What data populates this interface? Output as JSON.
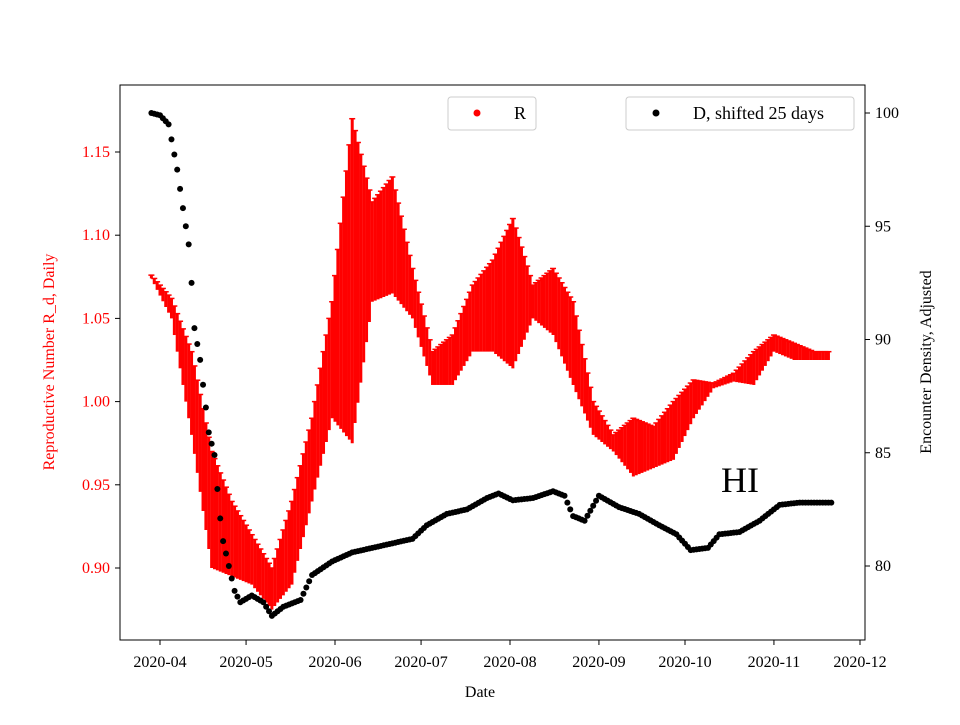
{
  "chart_data": {
    "type": "scatter",
    "xlabel": "Date",
    "ylabel_left": "Reproductive Number R_d, Daily",
    "ylabel_right": "Encounter Density, Adjusted",
    "annotation": "HI",
    "x_ticks": [
      "2020-04",
      "2020-05",
      "2020-06",
      "2020-07",
      "2020-08",
      "2020-09",
      "2020-10",
      "2020-11",
      "2020-12"
    ],
    "x_tick_dates": [
      "2020-04-01",
      "2020-05-01",
      "2020-06-01",
      "2020-07-01",
      "2020-08-01",
      "2020-09-01",
      "2020-10-01",
      "2020-11-01",
      "2020-12-01"
    ],
    "y_left_ticks": [
      "0.90",
      "0.95",
      "1.00",
      "1.05",
      "1.10",
      "1.15"
    ],
    "y_left_range": [
      0.865,
      1.185
    ],
    "y_right_ticks": [
      "80",
      "85",
      "90",
      "95",
      "100"
    ],
    "y_right_range": [
      76.9,
      101.3
    ],
    "x_range": [
      "2020-03-18",
      "2020-12-05"
    ],
    "grid": false,
    "colors": {
      "R": "#ff0000",
      "D": "#000000",
      "left_axis": "#ff0000"
    },
    "legend": [
      {
        "label": "R",
        "color": "#ff0000",
        "placement": "top-center"
      },
      {
        "label": "D, shifted 25 days",
        "color": "#000000",
        "placement": "top-right"
      }
    ],
    "series": [
      {
        "name": "R",
        "axis": "left",
        "kind": "band [date, low, high]",
        "values": [
          [
            "2020-03-29",
            1.074,
            1.076
          ],
          [
            "2020-04-05",
            1.05,
            1.062
          ],
          [
            "2020-04-12",
            0.98,
            1.03
          ],
          [
            "2020-04-19",
            0.9,
            0.97
          ],
          [
            "2020-04-26",
            0.895,
            0.94
          ],
          [
            "2020-05-03",
            0.89,
            0.92
          ],
          [
            "2020-05-10",
            0.875,
            0.9
          ],
          [
            "2020-05-17",
            0.89,
            0.94
          ],
          [
            "2020-05-24",
            0.94,
            0.99
          ],
          [
            "2020-05-31",
            0.99,
            1.06
          ],
          [
            "2020-06-07",
            0.975,
            1.17
          ],
          [
            "2020-06-14",
            1.06,
            1.12
          ],
          [
            "2020-06-21",
            1.065,
            1.135
          ],
          [
            "2020-06-28",
            1.05,
            1.08
          ],
          [
            "2020-07-05",
            1.01,
            1.03
          ],
          [
            "2020-07-12",
            1.01,
            1.04
          ],
          [
            "2020-07-19",
            1.03,
            1.07
          ],
          [
            "2020-07-26",
            1.03,
            1.085
          ],
          [
            "2020-08-02",
            1.02,
            1.11
          ],
          [
            "2020-08-09",
            1.05,
            1.07
          ],
          [
            "2020-08-16",
            1.04,
            1.08
          ],
          [
            "2020-08-23",
            1.01,
            1.06
          ],
          [
            "2020-08-30",
            0.98,
            1.0
          ],
          [
            "2020-09-06",
            0.97,
            0.98
          ],
          [
            "2020-09-13",
            0.955,
            0.99
          ],
          [
            "2020-09-20",
            0.96,
            0.985
          ],
          [
            "2020-09-27",
            0.965,
            1.0
          ],
          [
            "2020-10-04",
            0.99,
            1.013
          ],
          [
            "2020-10-11",
            1.008,
            1.011
          ],
          [
            "2020-10-18",
            1.012,
            1.017
          ],
          [
            "2020-10-25",
            1.01,
            1.03
          ],
          [
            "2020-11-01",
            1.03,
            1.04
          ],
          [
            "2020-11-08",
            1.025,
            1.035
          ],
          [
            "2020-11-15",
            1.025,
            1.03
          ],
          [
            "2020-11-21",
            1.025,
            1.03
          ]
        ]
      },
      {
        "name": "D, shifted 25 days",
        "axis": "right",
        "kind": "points [date, value]",
        "values": [
          [
            "2020-03-29",
            100
          ],
          [
            "2020-04-01",
            99.9
          ],
          [
            "2020-04-04",
            99.5
          ],
          [
            "2020-04-07",
            97.5
          ],
          [
            "2020-04-09",
            95.8
          ],
          [
            "2020-04-11",
            94.2
          ],
          [
            "2020-04-12",
            92.5
          ],
          [
            "2020-04-13",
            90.5
          ],
          [
            "2020-04-15",
            89.1
          ],
          [
            "2020-04-16",
            88.0
          ],
          [
            "2020-04-17",
            87.0
          ],
          [
            "2020-04-18",
            85.9
          ],
          [
            "2020-04-20",
            84.9
          ],
          [
            "2020-04-21",
            83.4
          ],
          [
            "2020-04-22",
            82.1
          ],
          [
            "2020-04-23",
            81.1
          ],
          [
            "2020-04-25",
            80.0
          ],
          [
            "2020-04-27",
            78.9
          ],
          [
            "2020-04-29",
            78.4
          ],
          [
            "2020-05-03",
            78.7
          ],
          [
            "2020-05-07",
            78.4
          ],
          [
            "2020-05-10",
            77.8
          ],
          [
            "2020-05-14",
            78.2
          ],
          [
            "2020-05-20",
            78.5
          ],
          [
            "2020-05-24",
            79.6
          ],
          [
            "2020-05-31",
            80.2
          ],
          [
            "2020-06-07",
            80.6
          ],
          [
            "2020-06-14",
            80.8
          ],
          [
            "2020-06-21",
            81.0
          ],
          [
            "2020-06-28",
            81.2
          ],
          [
            "2020-07-03",
            81.8
          ],
          [
            "2020-07-10",
            82.3
          ],
          [
            "2020-07-17",
            82.5
          ],
          [
            "2020-07-24",
            83.0
          ],
          [
            "2020-07-28",
            83.2
          ],
          [
            "2020-08-02",
            82.9
          ],
          [
            "2020-08-09",
            83.0
          ],
          [
            "2020-08-16",
            83.3
          ],
          [
            "2020-08-20",
            83.1
          ],
          [
            "2020-08-23",
            82.2
          ],
          [
            "2020-08-27",
            82.0
          ],
          [
            "2020-09-01",
            83.1
          ],
          [
            "2020-09-08",
            82.6
          ],
          [
            "2020-09-15",
            82.3
          ],
          [
            "2020-09-22",
            81.8
          ],
          [
            "2020-09-28",
            81.4
          ],
          [
            "2020-10-03",
            80.7
          ],
          [
            "2020-10-09",
            80.8
          ],
          [
            "2020-10-13",
            81.4
          ],
          [
            "2020-10-20",
            81.5
          ],
          [
            "2020-10-27",
            82.0
          ],
          [
            "2020-11-03",
            82.7
          ],
          [
            "2020-11-10",
            82.8
          ],
          [
            "2020-11-21",
            82.8
          ]
        ]
      }
    ]
  }
}
